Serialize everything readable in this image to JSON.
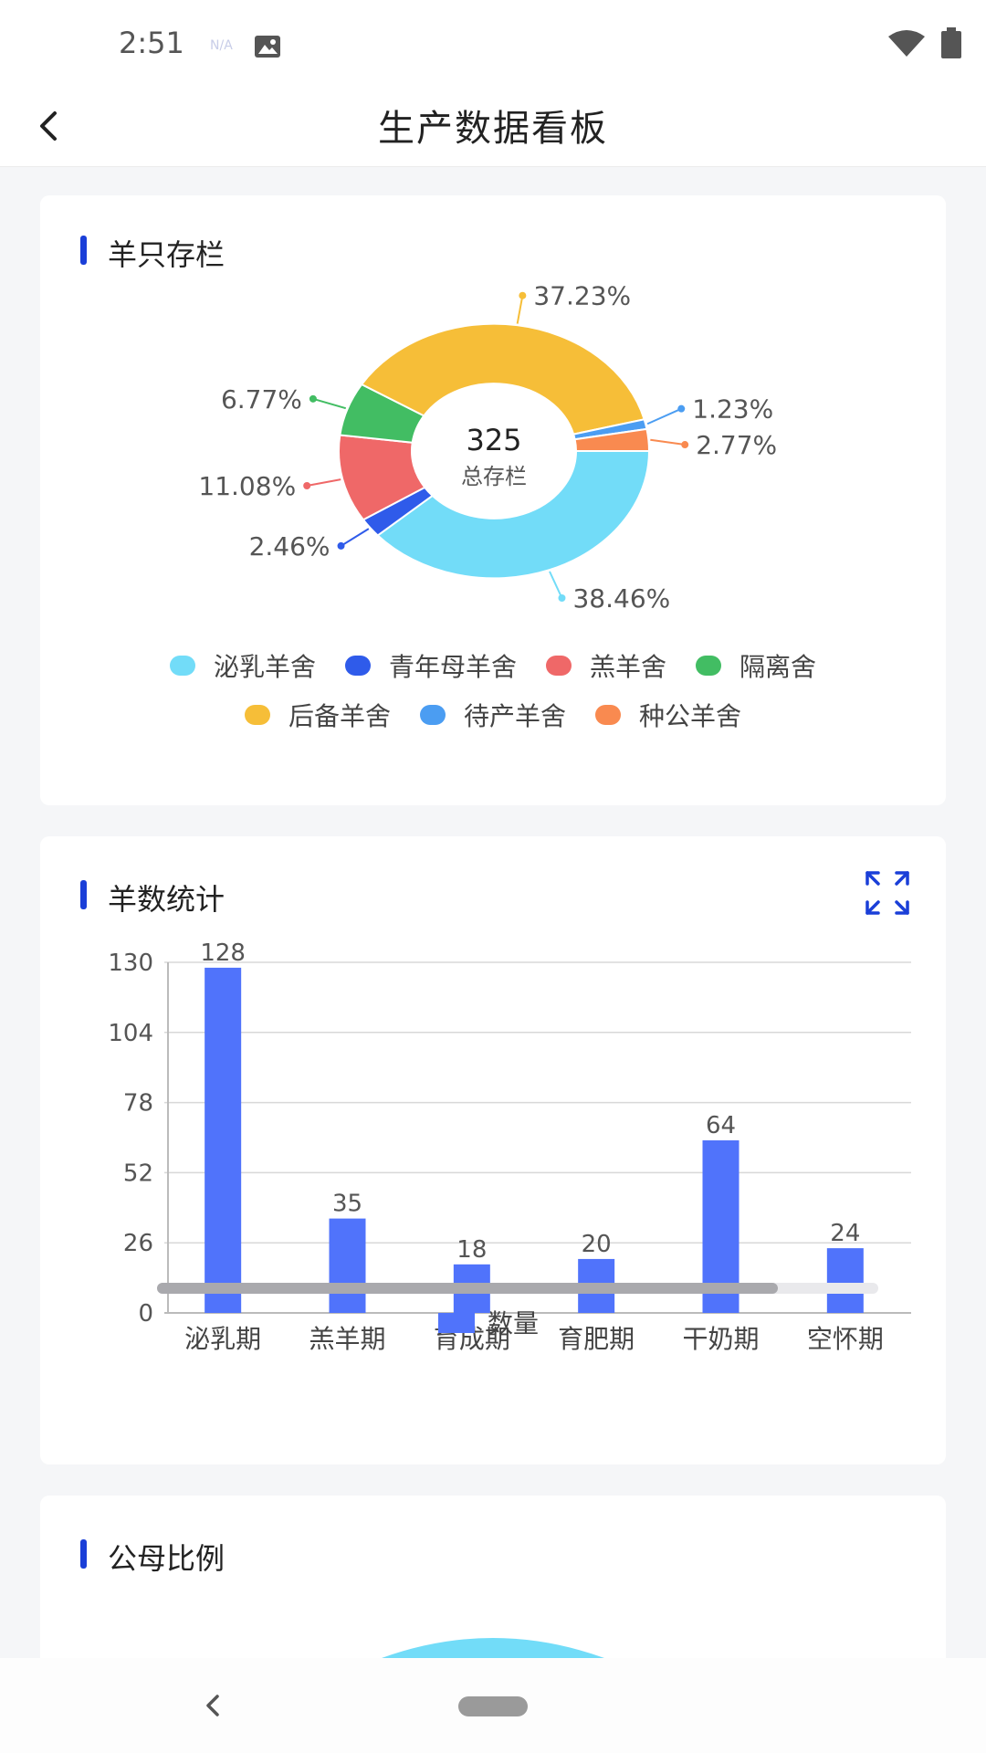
{
  "status_bar": {
    "time": "2:51",
    "na_label": "N/A"
  },
  "header": {
    "title": "生产数据看板"
  },
  "colors": {
    "accent": "#1a3fd8",
    "lactating": "#72dcf8",
    "young_ewe": "#2f5bea",
    "lamb": "#ef6868",
    "isolation": "#42bd63",
    "reserve": "#f6be38",
    "pregnant": "#4b9df2",
    "ram": "#f98a50",
    "bar": "#5073fb"
  },
  "stock_card": {
    "title": "羊只存栏",
    "center_value": "325",
    "center_label": "总存栏",
    "legend": [
      {
        "label": "泌乳羊舍",
        "color": "#72dcf8"
      },
      {
        "label": "青年母羊舍",
        "color": "#2f5bea"
      },
      {
        "label": "羔羊舍",
        "color": "#ef6868"
      },
      {
        "label": "隔离舍",
        "color": "#42bd63"
      },
      {
        "label": "后备羊舍",
        "color": "#f6be38"
      },
      {
        "label": "待产羊舍",
        "color": "#4b9df2"
      },
      {
        "label": "种公羊舍",
        "color": "#f98a50"
      }
    ]
  },
  "count_card": {
    "title": "羊数统计",
    "expand_icon": "expand-icon",
    "legend_label": "数量"
  },
  "ratio_card": {
    "title": "公母比例"
  },
  "chart_data": [
    {
      "type": "pie",
      "style": "donut",
      "categories": [
        "泌乳羊舍",
        "青年母羊舍",
        "羔羊舍",
        "隔离舍",
        "后备羊舍",
        "待产羊舍",
        "种公羊舍"
      ],
      "values": [
        38.46,
        2.46,
        11.08,
        6.77,
        37.23,
        1.23,
        2.77
      ],
      "labels": [
        "38.46%",
        "2.46%",
        "11.08%",
        "6.77%",
        "37.23%",
        "1.23%",
        "2.77%"
      ],
      "legend_position": "bottom"
    },
    {
      "type": "bar",
      "categories": [
        "泌乳期",
        "羔羊期",
        "育成期",
        "育肥期",
        "干奶期",
        "空怀期"
      ],
      "series": [
        {
          "name": "数量",
          "values": [
            128,
            35,
            18,
            20,
            64,
            24
          ]
        }
      ],
      "yticks": [
        0,
        26,
        52,
        78,
        104,
        130
      ],
      "ylim": [
        0,
        130
      ],
      "grid": true,
      "legend_position": "bottom"
    }
  ]
}
